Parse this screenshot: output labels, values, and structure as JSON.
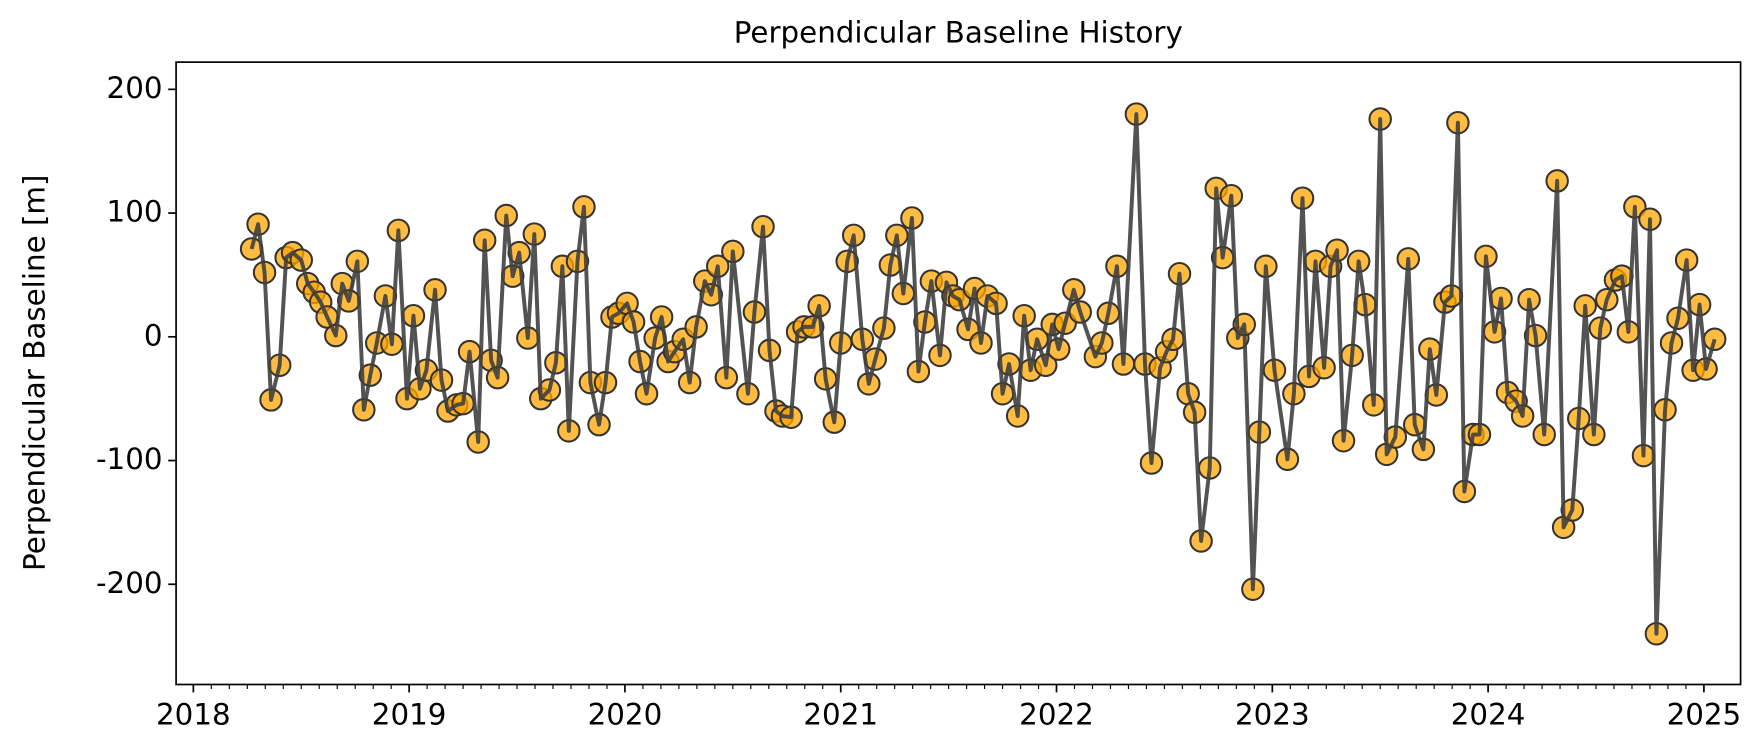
{
  "chart_data": {
    "type": "line",
    "title": "Perpendicular Baseline History",
    "ylabel": "Perpendicular Baseline [m]",
    "x": [
      2018.27,
      2018.3,
      2018.33,
      2018.36,
      2018.4,
      2018.43,
      2018.46,
      2018.5,
      2018.53,
      2018.56,
      2018.59,
      2018.62,
      2018.66,
      2018.69,
      2018.72,
      2018.76,
      2018.79,
      2018.82,
      2018.85,
      2018.89,
      2018.92,
      2018.95,
      2018.99,
      2019.02,
      2019.05,
      2019.08,
      2019.12,
      2019.15,
      2019.18,
      2019.22,
      2019.25,
      2019.28,
      2019.32,
      2019.35,
      2019.38,
      2019.41,
      2019.45,
      2019.48,
      2019.51,
      2019.55,
      2019.58,
      2019.61,
      2019.65,
      2019.68,
      2019.71,
      2019.74,
      2019.78,
      2019.81,
      2019.84,
      2019.88,
      2019.91,
      2019.94,
      2019.97,
      2020.01,
      2020.04,
      2020.07,
      2020.1,
      2020.14,
      2020.17,
      2020.2,
      2020.23,
      2020.27,
      2020.3,
      2020.33,
      2020.37,
      2020.4,
      2020.43,
      2020.47,
      2020.5,
      2020.57,
      2020.6,
      2020.64,
      2020.67,
      2020.7,
      2020.73,
      2020.77,
      2020.8,
      2020.83,
      2020.87,
      2020.9,
      2020.93,
      2020.97,
      2021.0,
      2021.03,
      2021.06,
      2021.1,
      2021.13,
      2021.16,
      2021.2,
      2021.23,
      2021.26,
      2021.29,
      2021.33,
      2021.36,
      2021.39,
      2021.42,
      2021.46,
      2021.49,
      2021.52,
      2021.55,
      2021.59,
      2021.62,
      2021.65,
      2021.68,
      2021.72,
      2021.75,
      2021.78,
      2021.82,
      2021.85,
      2021.88,
      2021.91,
      2021.95,
      2021.98,
      2022.01,
      2022.04,
      2022.08,
      2022.11,
      2022.18,
      2022.21,
      2022.24,
      2022.28,
      2022.31,
      2022.37,
      2022.41,
      2022.44,
      2022.48,
      2022.51,
      2022.54,
      2022.57,
      2022.61,
      2022.64,
      2022.67,
      2022.71,
      2022.74,
      2022.77,
      2022.81,
      2022.84,
      2022.87,
      2022.91,
      2022.94,
      2022.97,
      2023.01,
      2023.07,
      2023.1,
      2023.14,
      2023.17,
      2023.2,
      2023.24,
      2023.27,
      2023.3,
      2023.33,
      2023.37,
      2023.4,
      2023.43,
      2023.47,
      2023.5,
      2023.53,
      2023.57,
      2023.63,
      2023.66,
      2023.7,
      2023.73,
      2023.76,
      2023.8,
      2023.83,
      2023.86,
      2023.89,
      2023.93,
      2023.96,
      2023.99,
      2024.03,
      2024.06,
      2024.09,
      2024.13,
      2024.16,
      2024.19,
      2024.22,
      2024.26,
      2024.32,
      2024.35,
      2024.39,
      2024.42,
      2024.45,
      2024.49,
      2024.52,
      2024.55,
      2024.59,
      2024.62,
      2024.65,
      2024.68,
      2024.72,
      2024.75,
      2024.78,
      2024.82,
      2024.85,
      2024.88,
      2024.92,
      2024.95,
      2024.98,
      2025.01,
      2025.05
    ],
    "values": [
      71,
      91,
      52,
      -51,
      -23,
      64,
      68,
      62,
      43,
      36,
      28,
      16,
      1,
      43,
      29,
      61,
      -59,
      -31,
      -5,
      33,
      -6,
      86,
      -50,
      17,
      -42,
      -27,
      38,
      -35,
      -60,
      -55,
      -54,
      -12,
      -85,
      78,
      -19,
      -33,
      98,
      49,
      68,
      -1,
      83,
      -50,
      -43,
      -21,
      57,
      -76,
      61,
      105,
      -37,
      -71,
      -37,
      16,
      19,
      27,
      12,
      -20,
      -46,
      -1,
      16,
      -20,
      -12,
      -2,
      -37,
      8,
      45,
      34,
      57,
      -33,
      69,
      -46,
      20,
      89,
      -11,
      -60,
      -64,
      -65,
      4,
      8,
      8,
      25,
      -34,
      -69,
      -5,
      61,
      82,
      -2,
      -38,
      -18,
      7,
      58,
      82,
      35,
      96,
      -28,
      12,
      45,
      -15,
      44,
      33,
      30,
      6,
      39,
      -5,
      33,
      27,
      -46,
      -22,
      -64,
      17,
      -27,
      -2,
      -23,
      10,
      -10,
      11,
      38,
      20,
      -16,
      -5,
      19,
      57,
      -22,
      180,
      -22,
      -102,
      -25,
      -12,
      -2,
      51,
      -46,
      -61,
      -165,
      -106,
      120,
      64,
      114,
      -1,
      10,
      -204,
      -77,
      57,
      -27,
      -99,
      -46,
      112,
      -32,
      61,
      -25,
      57,
      70,
      -84,
      -15,
      61,
      26,
      -55,
      176,
      -95,
      -81,
      63,
      -71,
      -91,
      -10,
      -47,
      28,
      33,
      173,
      -125,
      -79,
      -79,
      65,
      4,
      31,
      -45,
      -52,
      -64,
      30,
      1,
      -79,
      126,
      -154,
      -140,
      -66,
      25,
      -79,
      7,
      30,
      46,
      49,
      4,
      105,
      -96,
      95,
      -240,
      -59,
      -5,
      15,
      62,
      -27,
      26,
      -26,
      -2
    ],
    "line_color": "#404040",
    "marker_color": "#ffa500",
    "marker_edge": "#333333",
    "xlim": [
      2017.92,
      2025.17
    ],
    "xticks": [
      2018,
      2019,
      2020,
      2021,
      2022,
      2023,
      2024,
      2025
    ],
    "ylim": [
      -281,
      222
    ],
    "yticks": [
      -200,
      -100,
      0,
      100,
      200
    ],
    "grid": false
  }
}
